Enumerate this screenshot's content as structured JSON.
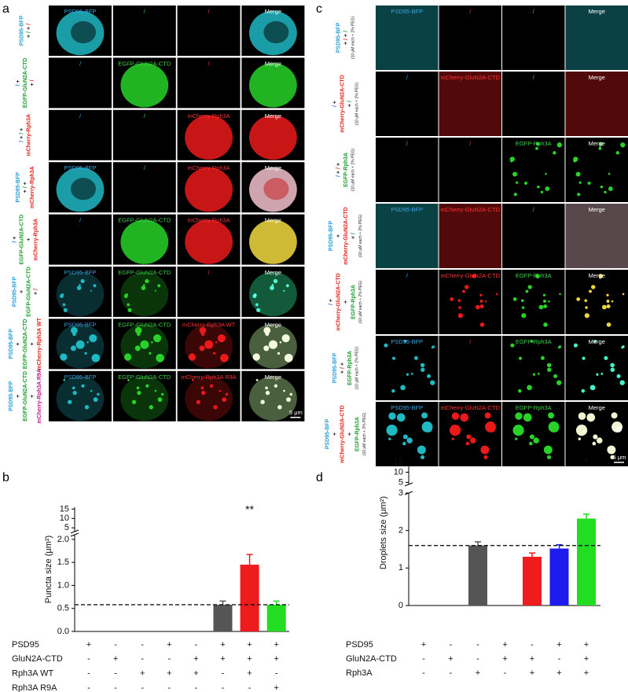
{
  "panels": {
    "a": {
      "label": "a",
      "scale_bar": "5 μm",
      "rows": [
        {
          "label": [
            [
              [
                "PSD95-BFP",
                "c"
              ]
            ],
            [
              [
                "+",
                "k"
              ],
              [
                "/",
                "g"
              ],
              [
                "+",
                "k"
              ],
              [
                "/",
                "r"
              ]
            ]
          ],
          "cells": [
            "PSD95-BFP",
            "/",
            "/",
            "Merge"
          ]
        },
        {
          "label": [
            [
              [
                "/",
                "b"
              ],
              [
                "+",
                "k"
              ]
            ],
            [
              [
                "EGFP-GluN2A-CTD",
                "g"
              ]
            ],
            [
              [
                "+",
                "k"
              ],
              [
                "/",
                "r"
              ]
            ]
          ],
          "cells": [
            "/",
            "EGFP-GluN2A-CTD",
            "/",
            "Merge"
          ]
        },
        {
          "label": [
            [
              [
                "/",
                "b"
              ],
              [
                "+",
                "k"
              ],
              [
                "/",
                "g"
              ],
              [
                "+",
                "k"
              ]
            ],
            [
              [
                "mCherry-Rph3A",
                "r"
              ]
            ]
          ],
          "cells": [
            "/",
            "/",
            "mCherry-Rph3A",
            "Merge"
          ]
        },
        {
          "label": [
            [
              [
                "PSD95-BFP",
                "c"
              ]
            ],
            [
              [
                "+",
                "k"
              ],
              [
                "/",
                "g"
              ],
              [
                "+",
                "k"
              ]
            ],
            [
              [
                "mCherry-Rph3A",
                "r"
              ]
            ]
          ],
          "cells": [
            "PSD95-BFP",
            "/",
            "mCherry-Rph3A",
            "Merge"
          ]
        },
        {
          "label": [
            [
              [
                "/",
                "b"
              ],
              [
                "+",
                "k"
              ]
            ],
            [
              [
                "EGFP-GluN2A-CTD",
                "g"
              ]
            ],
            [
              [
                "+",
                "k"
              ]
            ],
            [
              [
                "mCherry-Rph3A",
                "r"
              ]
            ]
          ],
          "cells": [
            "/",
            "EGFP-GluN2A-CTD",
            "mCherry-Rph3A",
            "Merge"
          ]
        },
        {
          "label": [
            [
              [
                "PSD95-BFP",
                "c"
              ]
            ],
            [
              [
                "+",
                "k"
              ]
            ],
            [
              [
                "EGFP-GluN2A-CTD",
                "g"
              ]
            ],
            [
              [
                "+",
                "k"
              ],
              [
                "/",
                "r"
              ]
            ]
          ],
          "cells": [
            "PSD95-BFP",
            "EGFP-GluN2A-CTD",
            "/",
            "Merge"
          ]
        },
        {
          "label": [
            [
              [
                "PSD95-BFP",
                "c"
              ]
            ],
            [
              [
                "+",
                "k"
              ]
            ],
            [
              [
                "EGFP-GluN2A-CTD",
                "g"
              ]
            ],
            [
              [
                "+",
                "k"
              ]
            ],
            [
              [
                "mCherry-Rph3A WT",
                "r"
              ]
            ]
          ],
          "cells": [
            "PSD95-BFP",
            "EGFP-GluN2A-CTD",
            "mCherry-Rph3A WT",
            "Merge"
          ]
        },
        {
          "label": [
            [
              [
                "PSD95-BFP",
                "c"
              ]
            ],
            [
              [
                "+",
                "k"
              ]
            ],
            [
              [
                "EGFP-GluN2A-CTD",
                "g"
              ]
            ],
            [
              [
                "+",
                "k"
              ]
            ],
            [
              [
                "mCherry-Rph3A R9A",
                "m"
              ]
            ]
          ],
          "cells": [
            "PSD95-BFP",
            "EGFP-GluN2A-CTD",
            "mCherry-Rph3A R9A",
            "Merge"
          ]
        }
      ]
    },
    "c": {
      "label": "c",
      "scale_bar": "5 μm",
      "rows": [
        {
          "label": [
            [
              [
                "PSD95-BFP",
                "c"
              ]
            ],
            [
              [
                "+",
                "k"
              ],
              [
                "/",
                "r"
              ],
              [
                "+",
                "k"
              ],
              [
                "/",
                "g"
              ]
            ],
            [
              [
                "(10 μM each + 2% PEG)",
                "k"
              ]
            ]
          ],
          "cells": [
            "PSD95-BFP",
            "/",
            "/",
            "Merge"
          ]
        },
        {
          "label": [
            [
              [
                "/",
                "b"
              ],
              [
                "+",
                "k"
              ]
            ],
            [
              [
                "mCherry-GluN2A-CTD",
                "r"
              ]
            ],
            [
              [
                "+",
                "k"
              ],
              [
                "/",
                "g"
              ]
            ],
            [
              [
                "(10 μM each + 2% PEG)",
                "k"
              ]
            ]
          ],
          "cells": [
            "/",
            "mCherry-GluN2A-CTD",
            "/",
            "Merge"
          ]
        },
        {
          "label": [
            [
              [
                "/",
                "b"
              ],
              [
                "+",
                "k"
              ],
              [
                "/",
                "r"
              ],
              [
                "+",
                "k"
              ]
            ],
            [
              [
                "EGFP-Rph3A",
                "g"
              ]
            ],
            [
              [
                "(10 μM each + 2% PEG)",
                "k"
              ]
            ]
          ],
          "cells": [
            "/",
            "/",
            "EGFP-Rph3A",
            "Merge"
          ]
        },
        {
          "label": [
            [
              [
                "PSD95-BFP",
                "c"
              ]
            ],
            [
              [
                "+",
                "k"
              ]
            ],
            [
              [
                "mCherry-GluN2A-CTD",
                "r"
              ]
            ],
            [
              [
                "+",
                "k"
              ],
              [
                "/",
                "g"
              ]
            ],
            [
              [
                "(10 μM each + 2% PEG)",
                "k"
              ]
            ]
          ],
          "cells": [
            "PSD95-BFP",
            "mCherry-GluN2A-CTD",
            "/",
            "Merge"
          ]
        },
        {
          "label": [
            [
              [
                "/",
                "b"
              ],
              [
                "+",
                "k"
              ]
            ],
            [
              [
                "mCherry-GluN2A-CTD",
                "r"
              ]
            ],
            [
              [
                "+",
                "k"
              ]
            ],
            [
              [
                "EGFP-Rph3A",
                "g"
              ]
            ],
            [
              [
                "(10 μM each + 2% PEG)",
                "k"
              ]
            ]
          ],
          "cells": [
            "/",
            "mCherry-GluN2A-CTD",
            "EGFP-Rph3A",
            "Merge"
          ]
        },
        {
          "label": [
            [
              [
                "PSD95-BFP",
                "c"
              ]
            ],
            [
              [
                "+",
                "k"
              ],
              [
                "/",
                "r"
              ],
              [
                "+",
                "k"
              ]
            ],
            [
              [
                "EGFP-Rph3A",
                "g"
              ]
            ],
            [
              [
                "(10 μM each + 2% PEG)",
                "k"
              ]
            ]
          ],
          "cells": [
            "PSD95-BFP",
            "/",
            "EGFP-Rph3A",
            "Merge"
          ]
        },
        {
          "label": [
            [
              [
                "PSD95-BFP",
                "c"
              ]
            ],
            [
              [
                "+",
                "k"
              ]
            ],
            [
              [
                "mCherry-GluN2A-CTD",
                "r"
              ]
            ],
            [
              [
                "+",
                "k"
              ]
            ],
            [
              [
                "EGFP-Rph3A",
                "g"
              ]
            ],
            [
              [
                "(10 μM each + 2% PEG)",
                "k"
              ]
            ]
          ],
          "cells": [
            "PSD95-BFP",
            "mCherry-GluN2A-CTD",
            "EGFP-Rph3A",
            "Merge"
          ]
        }
      ]
    }
  },
  "chart_data": [
    {
      "type": "bar",
      "label": "b",
      "ylabel": "Puncta size (μm²)",
      "categories": [
        null,
        null,
        null,
        null,
        null,
        null,
        null,
        null
      ],
      "values": [
        null,
        null,
        null,
        null,
        null,
        0.58,
        1.45,
        0.58
      ],
      "errors": [
        null,
        null,
        null,
        null,
        null,
        0.08,
        0.22,
        0.08
      ],
      "colors": [
        null,
        null,
        null,
        null,
        null,
        "#555555",
        "#ee1c1c",
        "#22dd22"
      ],
      "reference": 0.58,
      "annotations": [
        {
          "index": 6,
          "text": "**"
        }
      ],
      "ylim": [
        0,
        2.1
      ],
      "yticks": [
        {
          "value": 0,
          "label": "0.0"
        },
        0.5,
        {
          "value": 1,
          "label": "1.0"
        },
        1.5,
        {
          "value": 2,
          "label": "2.0"
        }
      ],
      "ylim_upper": [
        3,
        16
      ],
      "yticks_upper": [
        5,
        10,
        15
      ],
      "conditions": [
        {
          "name": "PSD95",
          "values": [
            "+",
            "-",
            "-",
            "+",
            "-",
            "+",
            "+",
            "+"
          ]
        },
        {
          "name": "GluN2A-CTD",
          "values": [
            "-",
            "+",
            "-",
            "-",
            "+",
            "+",
            "+",
            "+"
          ]
        },
        {
          "name": "Rph3A WT",
          "values": [
            "-",
            "-",
            "+",
            "+",
            "+",
            "-",
            "+",
            "-"
          ]
        },
        {
          "name": "Rph3A R9A",
          "values": [
            "-",
            "-",
            "-",
            "-",
            "-",
            "-",
            "-",
            "+"
          ]
        }
      ]
    },
    {
      "type": "bar",
      "label": "d",
      "ylabel": "Droplets size (μm²)",
      "categories": [
        null,
        null,
        null,
        null,
        null,
        null,
        null
      ],
      "values": [
        null,
        null,
        1.6,
        null,
        1.3,
        1.52,
        2.32
      ],
      "errors": [
        null,
        null,
        0.1,
        null,
        0.1,
        0.1,
        0.12
      ],
      "colors": [
        null,
        null,
        "#555555",
        null,
        "#ee1c1c",
        "#1c1cee",
        "#22dd22"
      ],
      "reference": 1.6,
      "annotations": [
        {
          "index": 6,
          "text": "*"
        }
      ],
      "ylim": [
        0,
        3
      ],
      "yticks": [
        0,
        1,
        2,
        3
      ],
      "ylim_upper": [
        4,
        16
      ],
      "yticks_upper": [
        5,
        10,
        15
      ],
      "conditions": [
        {
          "name": "PSD95",
          "values": [
            "+",
            "-",
            "-",
            "+",
            "-",
            "+",
            "+"
          ]
        },
        {
          "name": "GluN2A-CTD",
          "values": [
            "-",
            "+",
            "-",
            "+",
            "+",
            "-",
            "+"
          ]
        },
        {
          "name": "Rph3A",
          "values": [
            "-",
            "-",
            "+",
            "-",
            "+",
            "+",
            "+"
          ]
        }
      ]
    }
  ]
}
